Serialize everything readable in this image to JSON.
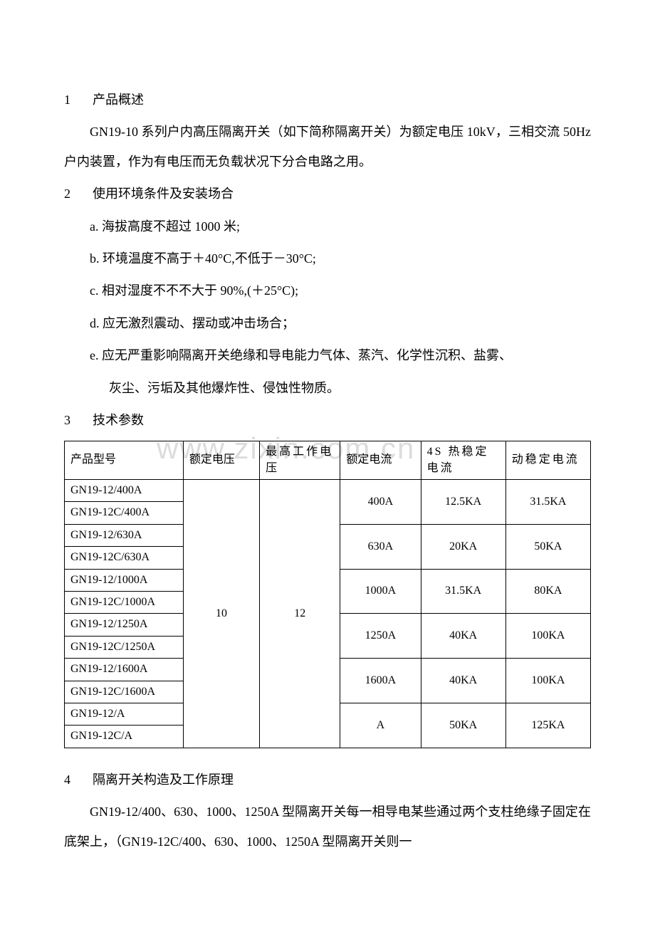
{
  "watermark": "www.zixin.com.cn",
  "sections": {
    "s1": {
      "number": "1",
      "title": "产品概述",
      "para": "GN19-10 系列户内高压隔离开关（如下简称隔离开关）为额定电压 10kV，三相交流 50Hz 户内装置，作为有电压而无负载状况下分合电路之用。"
    },
    "s2": {
      "number": "2",
      "title": "使用环境条件及安装场合",
      "items": {
        "a": "a.  海拔高度不超过 1000 米;",
        "b": "b.  环境温度不高于＋40°C,不低于－30°C;",
        "c": "c.  相对湿度不不不大于 90%,(＋25°C);",
        "d": "d.  应无激烈震动、摆动或冲击场合；",
        "e": "e.  应无严重影响隔离开关绝缘和导电能力气体、蒸汽、化学性沉积、盐雾、",
        "e2": "灰尘、污垢及其他爆炸性、侵蚀性物质。"
      }
    },
    "s3": {
      "number": "3",
      "title": "技术参数"
    },
    "s4": {
      "number": "4",
      "title": "隔离开关构造及工作原理",
      "para": "GN19-12/400、630、1000、1250A 型隔离开关每一相导电某些通过两个支柱绝缘子固定在底架上，（GN19-12C/400、630、1000、1250A 型隔离开关则一"
    }
  },
  "table": {
    "headers": {
      "model": "产品型号",
      "voltage": "额定电压",
      "maxv": "最高工作电压",
      "current": "额定电流",
      "thermal": "4S 热稳定电流",
      "dynamic": "动稳定电流"
    },
    "voltage_value": "10",
    "maxv_value": "12",
    "rows": [
      {
        "model": "GN19-12/400A",
        "current": "400A",
        "thermal": "12.5KA",
        "dynamic": "31.5KA"
      },
      {
        "model": "GN19-12C/400A"
      },
      {
        "model": "GN19-12/630A",
        "current": "630A",
        "thermal": "20KA",
        "dynamic": "50KA"
      },
      {
        "model": "GN19-12C/630A"
      },
      {
        "model": "GN19-12/1000A",
        "current": "1000A",
        "thermal": "31.5KA",
        "dynamic": "80KA"
      },
      {
        "model": "GN19-12C/1000A"
      },
      {
        "model": "GN19-12/1250A",
        "current": "1250A",
        "thermal": "40KA",
        "dynamic": "100KA"
      },
      {
        "model": "GN19-12C/1250A"
      },
      {
        "model": "GN19-12/1600A",
        "current": "1600A",
        "thermal": "40KA",
        "dynamic": "100KA"
      },
      {
        "model": "GN19-12C/1600A"
      },
      {
        "model": "GN19-12/A",
        "current": "A",
        "thermal": "50KA",
        "dynamic": "125KA"
      },
      {
        "model": "GN19-12C/A"
      }
    ]
  }
}
